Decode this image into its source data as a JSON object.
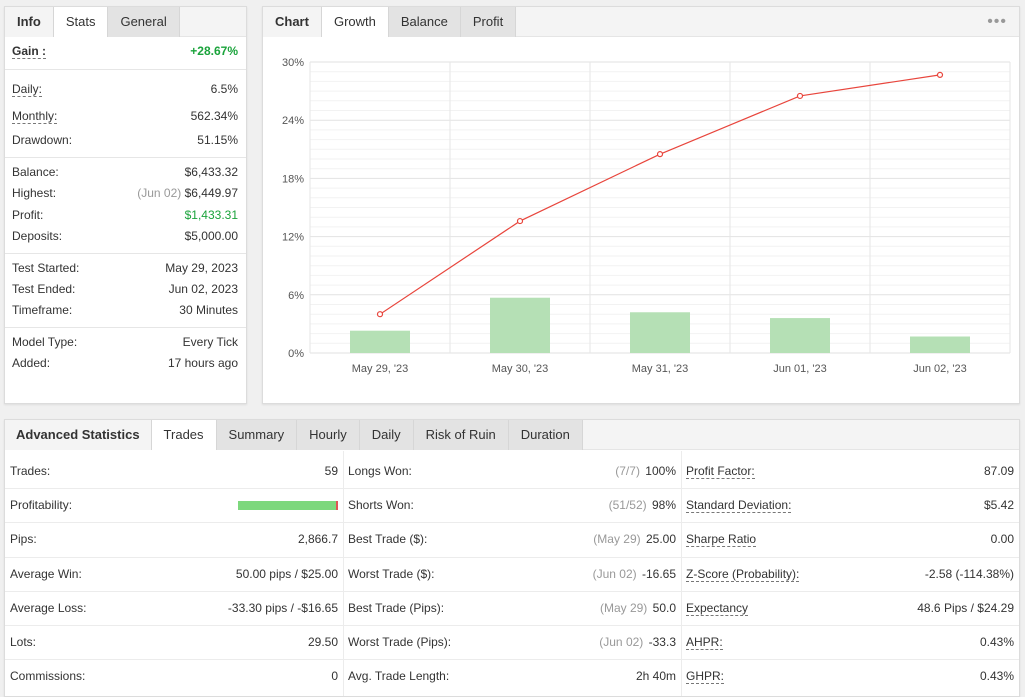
{
  "stats_panel": {
    "tabs": [
      "Info",
      "Stats",
      "General"
    ],
    "active_tab": "Stats",
    "gain": {
      "label": "Gain :",
      "value": "+28.67%"
    },
    "daily": {
      "label": "Daily:",
      "value": "6.5%"
    },
    "monthly": {
      "label": "Monthly:",
      "value": "562.34%"
    },
    "drawdown": {
      "label": "Drawdown:",
      "value": "51.15%"
    },
    "balance": {
      "label": "Balance:",
      "value": "$6,433.32"
    },
    "highest": {
      "label": "Highest:",
      "date": "(Jun 02)",
      "value": "$6,449.97"
    },
    "profit": {
      "label": "Profit:",
      "value": "$1,433.31"
    },
    "deposits": {
      "label": "Deposits:",
      "value": "$5,000.00"
    },
    "test_started": {
      "label": "Test Started:",
      "value": "May 29, 2023"
    },
    "test_ended": {
      "label": "Test Ended:",
      "value": "Jun 02, 2023"
    },
    "timeframe": {
      "label": "Timeframe:",
      "value": "30 Minutes"
    },
    "model_type": {
      "label": "Model Type:",
      "value": "Every Tick"
    },
    "added": {
      "label": "Added:",
      "value": "17 hours ago"
    }
  },
  "chart_panel": {
    "tabs": [
      "Chart",
      "Growth",
      "Balance",
      "Profit"
    ],
    "active_tab": "Growth",
    "menu_icon": "more-dots-icon"
  },
  "chart_data": {
    "type": "bar",
    "categories": [
      "May 29, '23",
      "May 30, '23",
      "May 31, '23",
      "Jun 01, '23",
      "Jun 02, '23"
    ],
    "ylim": [
      0,
      30
    ],
    "yticks": [
      "0%",
      "6%",
      "12%",
      "18%",
      "24%",
      "30%"
    ],
    "ytick_values": [
      0,
      6,
      12,
      18,
      24,
      30
    ],
    "series": [
      {
        "type": "bar",
        "values": [
          2.3,
          5.7,
          4.2,
          3.6,
          1.7
        ],
        "color": "#b5e0b5"
      },
      {
        "type": "line",
        "values": [
          4.0,
          13.6,
          20.5,
          26.5,
          28.67
        ],
        "color": "#e8453c"
      }
    ],
    "grid": true
  },
  "advanced": {
    "title": "Advanced Statistics",
    "tabs": [
      "Trades",
      "Summary",
      "Hourly",
      "Daily",
      "Risk of Ruin",
      "Duration"
    ],
    "active_tab": "Trades",
    "col1": [
      {
        "label": "Trades:",
        "value": "59"
      },
      {
        "label": "Profitability:",
        "value": ""
      },
      {
        "label": "Pips:",
        "value": "2,866.7"
      },
      {
        "label": "Average Win:",
        "value": "50.00 pips / $25.00"
      },
      {
        "label": "Average Loss:",
        "value": "-33.30 pips / -$16.65"
      },
      {
        "label": "Lots:",
        "value": "29.50"
      },
      {
        "label": "Commissions:",
        "value": "0"
      }
    ],
    "profitability_fraction": 0.98,
    "col2": [
      {
        "label": "Longs Won:",
        "note": "(7/7)",
        "value": "100%"
      },
      {
        "label": "Shorts Won:",
        "note": "(51/52)",
        "value": "98%"
      },
      {
        "label": "Best Trade ($):",
        "note": "(May 29)",
        "value": "25.00"
      },
      {
        "label": "Worst Trade ($):",
        "note": "(Jun 02)",
        "value": "-16.65"
      },
      {
        "label": "Best Trade (Pips):",
        "note": "(May 29)",
        "value": "50.0"
      },
      {
        "label": "Worst Trade (Pips):",
        "note": "(Jun 02)",
        "value": "-33.3"
      },
      {
        "label": "Avg. Trade Length:",
        "note": "",
        "value": "2h 40m"
      }
    ],
    "col3": [
      {
        "label": "Profit Factor:",
        "value": "87.09"
      },
      {
        "label": "Standard Deviation:",
        "value": "$5.42"
      },
      {
        "label": "Sharpe Ratio",
        "value": "0.00"
      },
      {
        "label": "Z-Score (Probability):",
        "value": "-2.58 (-114.38%)"
      },
      {
        "label": "Expectancy",
        "value": "48.6 Pips / $24.29"
      },
      {
        "label": "AHPR:",
        "value": "0.43%"
      },
      {
        "label": "GHPR:",
        "value": "0.43%"
      }
    ]
  }
}
